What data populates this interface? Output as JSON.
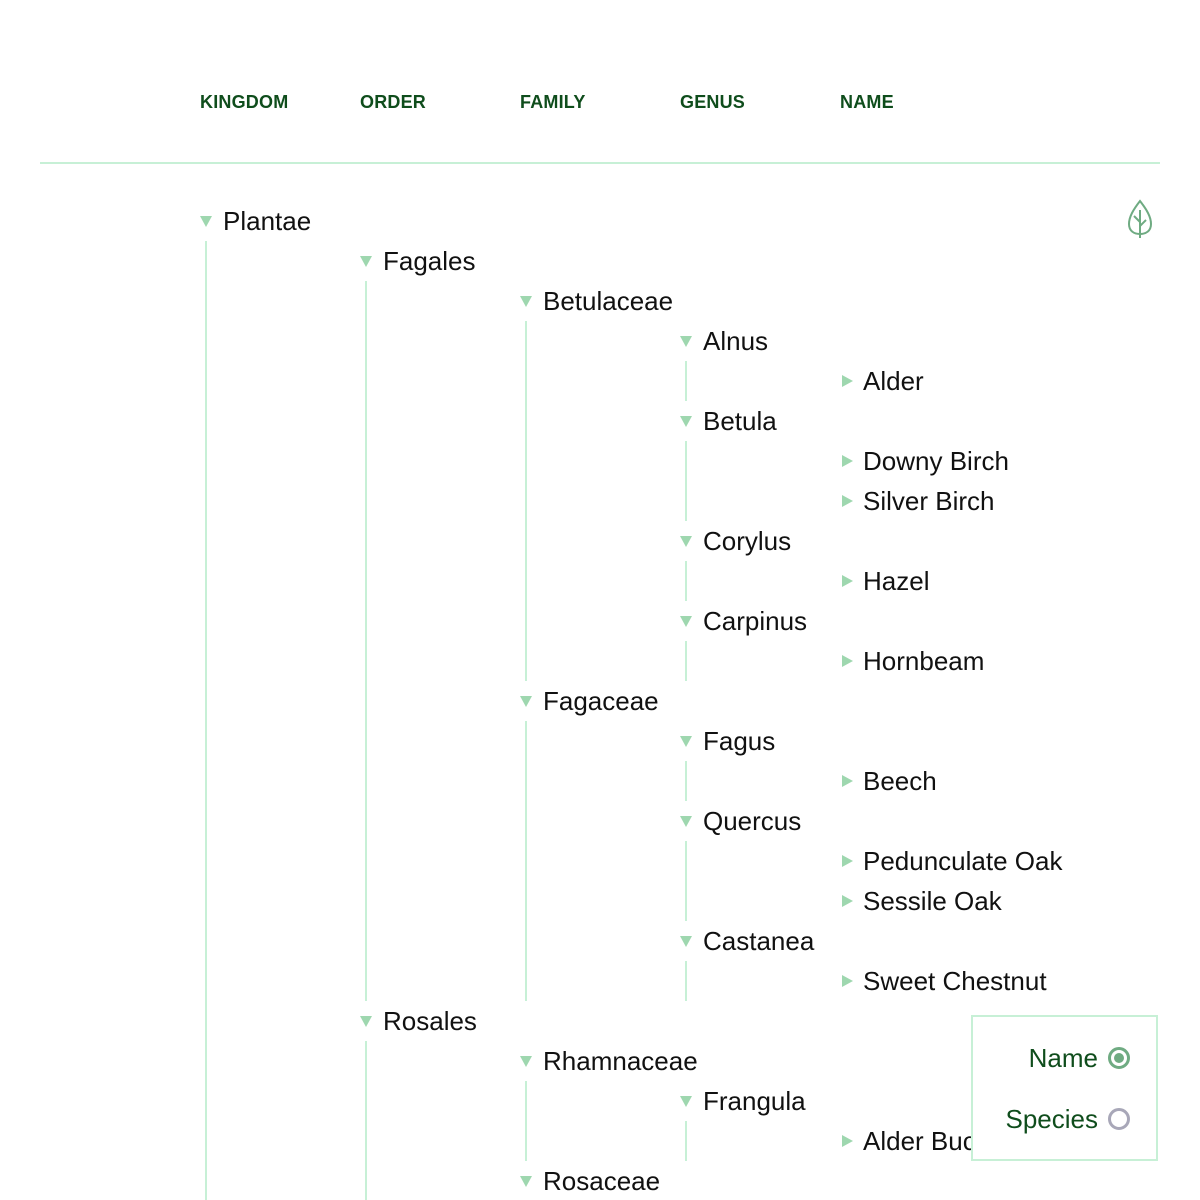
{
  "headers": {
    "kingdom": "KINGDOM",
    "order": "ORDER",
    "family": "FAMILY",
    "genus": "GENUS",
    "name": "NAME"
  },
  "tree": [
    {
      "level": 0,
      "label": "Plantae",
      "expanded": true
    },
    {
      "level": 1,
      "label": "Fagales",
      "expanded": true
    },
    {
      "level": 2,
      "label": "Betulaceae",
      "expanded": true
    },
    {
      "level": 3,
      "label": "Alnus",
      "expanded": true
    },
    {
      "level": 4,
      "label": "Alder",
      "expanded": false
    },
    {
      "level": 3,
      "label": "Betula",
      "expanded": true
    },
    {
      "level": 4,
      "label": "Downy Birch",
      "expanded": false
    },
    {
      "level": 4,
      "label": "Silver Birch",
      "expanded": false
    },
    {
      "level": 3,
      "label": "Corylus",
      "expanded": true
    },
    {
      "level": 4,
      "label": "Hazel",
      "expanded": false
    },
    {
      "level": 3,
      "label": "Carpinus",
      "expanded": true
    },
    {
      "level": 4,
      "label": "Hornbeam",
      "expanded": false
    },
    {
      "level": 2,
      "label": "Fagaceae",
      "expanded": true
    },
    {
      "level": 3,
      "label": "Fagus",
      "expanded": true
    },
    {
      "level": 4,
      "label": "Beech",
      "expanded": false
    },
    {
      "level": 3,
      "label": "Quercus",
      "expanded": true
    },
    {
      "level": 4,
      "label": "Pedunculate Oak",
      "expanded": false
    },
    {
      "level": 4,
      "label": "Sessile Oak",
      "expanded": false
    },
    {
      "level": 3,
      "label": "Castanea",
      "expanded": true
    },
    {
      "level": 4,
      "label": "Sweet Chestnut",
      "expanded": false
    },
    {
      "level": 1,
      "label": "Rosales",
      "expanded": true
    },
    {
      "level": 2,
      "label": "Rhamnaceae",
      "expanded": true
    },
    {
      "level": 3,
      "label": "Frangula",
      "expanded": true
    },
    {
      "level": 4,
      "label": "Alder Buckthorn",
      "expanded": false
    },
    {
      "level": 2,
      "label": "Rosaceae",
      "expanded": true
    }
  ],
  "label_toggle": {
    "options": [
      {
        "label": "Name",
        "selected": true
      },
      {
        "label": "Species",
        "selected": false
      }
    ]
  },
  "icons": {
    "tree_view": "tree-outline-icon"
  },
  "colors": {
    "header_text": "#0f4d1c",
    "guide_line": "#c7f0d6",
    "toggle_triangle": "#9ed7af",
    "radio_selected": "#6fab82",
    "radio_unselected": "#a8a7b8"
  }
}
